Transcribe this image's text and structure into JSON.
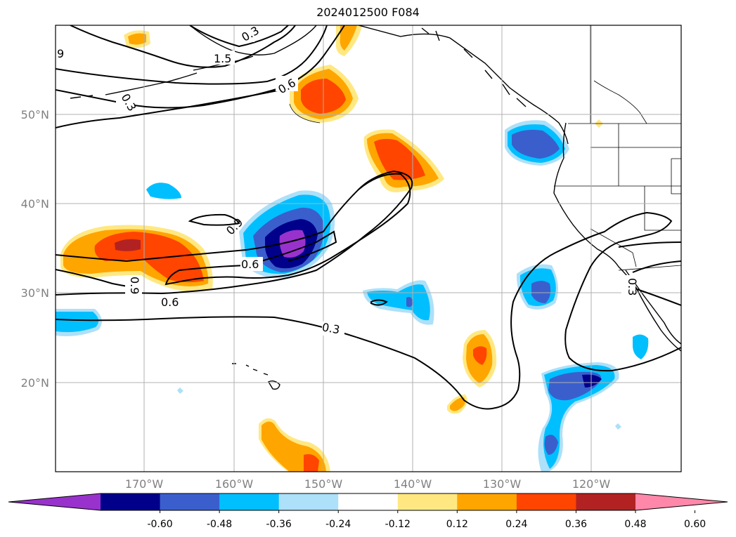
{
  "title": "2024012500 F084",
  "lat_labels": [
    "50°N",
    "40°N",
    "30°N",
    "20°N"
  ],
  "lon_labels": [
    "170°W",
    "160°W",
    "150°W",
    "140°W",
    "130°W",
    "120°W"
  ],
  "contour_labels": [
    "9",
    "1.5",
    "0.3",
    "0.6",
    "0.3",
    "0.9",
    "0.6",
    "0.9",
    "0.6",
    "0.3",
    "0.3"
  ],
  "colorbar": {
    "ticks": [
      "-0.60",
      "-0.48",
      "-0.36",
      "-0.24",
      "-0.12",
      "0.12",
      "0.24",
      "0.36",
      "0.48",
      "0.60"
    ],
    "colors": [
      "#9932CC",
      "#00008B",
      "#3A5FCD",
      "#00BFFF",
      "#ADE0F9",
      "#FFFFFF",
      "#FFE882",
      "#FFA500",
      "#FF4500",
      "#B22222",
      "#FF88AA"
    ]
  }
}
